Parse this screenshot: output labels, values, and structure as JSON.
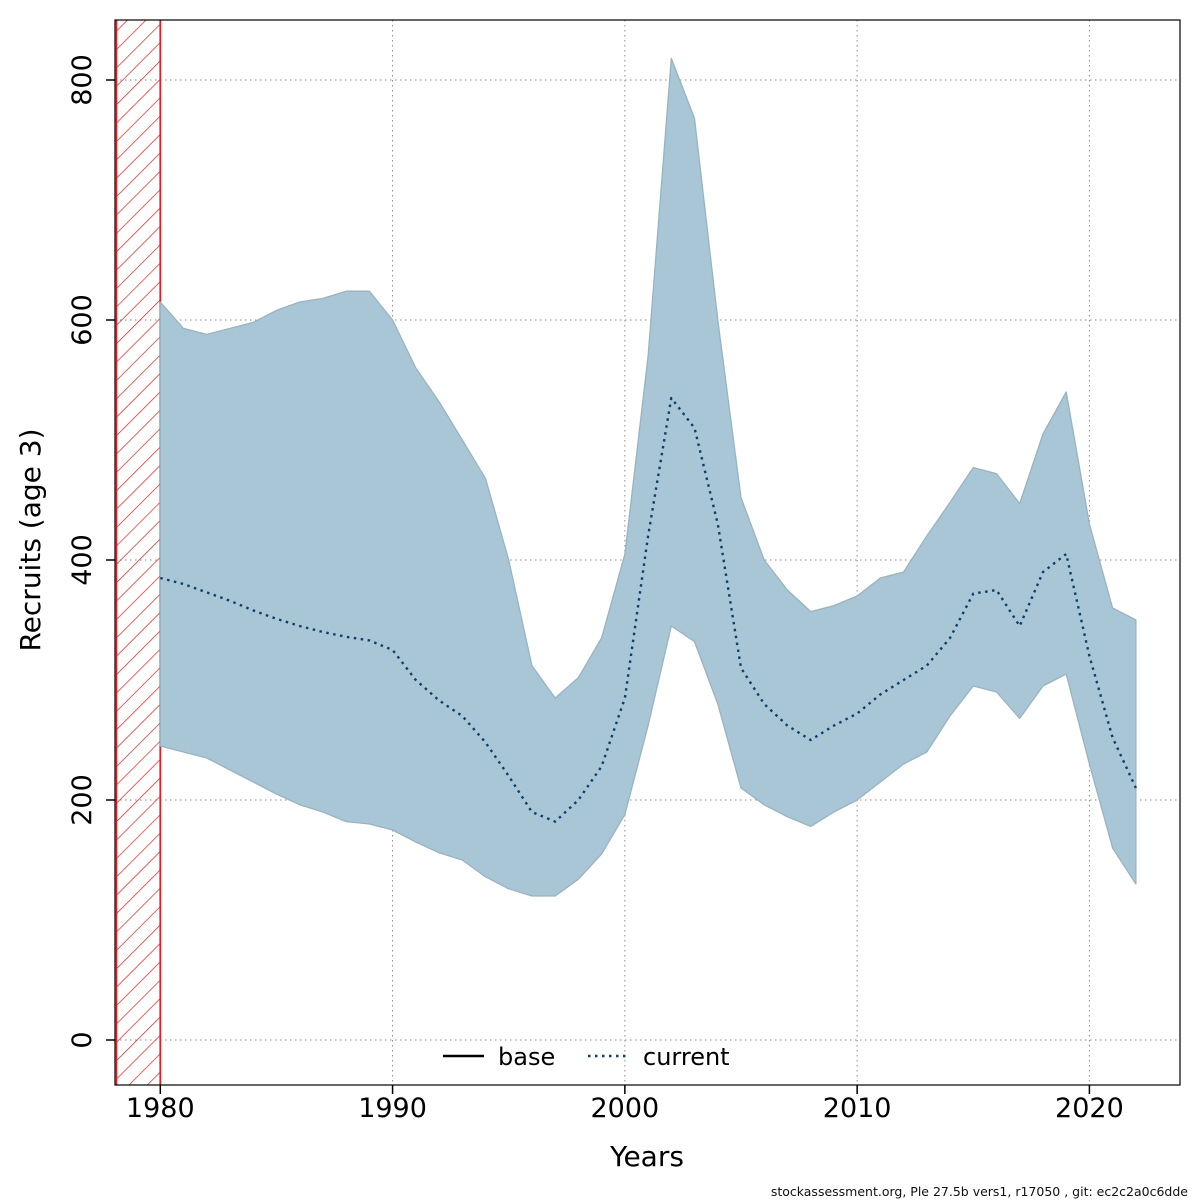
{
  "figure": {
    "footer": "stockassessment.org, Ple 27.5b vers1, r17050 , git: ec2c2a0c6dde"
  },
  "chart_data": {
    "type": "line",
    "title": "",
    "xlabel": "Years",
    "ylabel": "Recruits (age 3)",
    "x_ticks": [
      1980,
      1990,
      2000,
      2010,
      2020
    ],
    "y_ticks": [
      0,
      200,
      400,
      600,
      800
    ],
    "xlim": [
      1978.05,
      2023.9
    ],
    "ylim": [
      -37.5,
      850
    ],
    "grid": "dotted",
    "legend_position": "bottom-center-inside",
    "pre_data_region": {
      "x_start": 1978.05,
      "x_end": 1980,
      "style": "red-diagonal-hatch"
    },
    "colors": {
      "band": "#a8c6d6",
      "band_edge": "#9ab3c1",
      "current_line": "#0f3f68",
      "base_line": "#000000",
      "grid": "#8a8a8a",
      "hatch": "#e02020"
    },
    "legend": [
      {
        "label": "base",
        "line_style": "solid",
        "color": "#000000"
      },
      {
        "label": "current",
        "line_style": "dotted",
        "color": "#0f3f68"
      }
    ],
    "series": [
      {
        "name": "current",
        "x": [
          1980,
          1981,
          1982,
          1983,
          1984,
          1985,
          1986,
          1987,
          1988,
          1989,
          1990,
          1991,
          1992,
          1993,
          1994,
          1995,
          1996,
          1997,
          1998,
          1999,
          2000,
          2001,
          2002,
          2003,
          2004,
          2005,
          2006,
          2007,
          2008,
          2009,
          2010,
          2011,
          2012,
          2013,
          2014,
          2015,
          2016,
          2017,
          2018,
          2019,
          2020,
          2021,
          2022
        ],
        "median": [
          385,
          380,
          373,
          366,
          358,
          351,
          345,
          340,
          336,
          333,
          325,
          300,
          283,
          270,
          248,
          220,
          190,
          182,
          200,
          228,
          285,
          420,
          535,
          510,
          430,
          310,
          280,
          262,
          250,
          262,
          272,
          288,
          300,
          312,
          335,
          372,
          375,
          345,
          390,
          405,
          320,
          252,
          210
        ],
        "lower": [
          245,
          240,
          235,
          225,
          215,
          205,
          196,
          190,
          182,
          180,
          175,
          165,
          156,
          150,
          136,
          126,
          120,
          120,
          134,
          155,
          188,
          262,
          345,
          332,
          280,
          210,
          196,
          186,
          178,
          190,
          200,
          215,
          230,
          240,
          270,
          295,
          290,
          268,
          295,
          305,
          230,
          160,
          130
        ],
        "upper": [
          615,
          593,
          588,
          593,
          598,
          608,
          615,
          618,
          624,
          624,
          600,
          560,
          532,
          500,
          468,
          400,
          312,
          285,
          302,
          335,
          405,
          570,
          818,
          768,
          600,
          452,
          400,
          375,
          357,
          362,
          370,
          385,
          390,
          420,
          448,
          477,
          472,
          447,
          505,
          540,
          430,
          360,
          350
        ]
      }
    ]
  }
}
